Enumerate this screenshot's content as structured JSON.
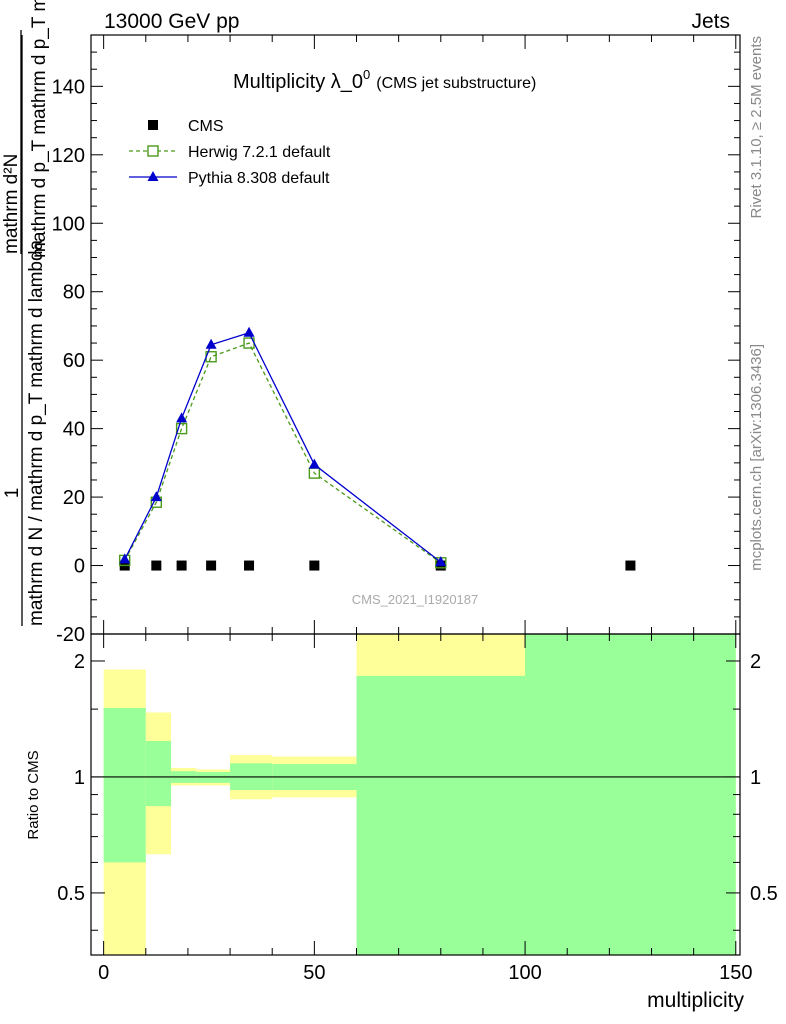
{
  "header": {
    "left": "13000 GeV pp",
    "right": "Jets"
  },
  "side_text": {
    "rivet": "Rivet 3.1.10, ≥ 2.5M events",
    "mcplots": "mcplots.cern.ch [arXiv:1306.3436]"
  },
  "chart_data": [
    {
      "type": "line",
      "title": "Multiplicity λ_0",
      "title_sup": "0",
      "subtitle": "(CMS jet substructure)",
      "watermark": "CMS_2021_I1920187",
      "ylabel_numerator": "1",
      "ylabel_denominator": "mathrm d N / mathrm d p_T mathrm d lambda",
      "ylabel_fraction_numerator": "mathrm d²N",
      "ylabel_fraction_denominator": "mathrm d p_T mathrm d p_T mathrm d lambda",
      "xlim": [
        -3,
        151
      ],
      "ylim": [
        -20,
        155
      ],
      "y_ticks": [
        -20,
        0,
        20,
        40,
        60,
        80,
        100,
        120,
        140
      ],
      "legend": [
        "CMS",
        "Herwig 7.2.1 default",
        "Pythia 8.308 default"
      ],
      "legend_placement": "top-left",
      "series": [
        {
          "name": "CMS",
          "color": "#000000",
          "marker": "square",
          "x": [
            5,
            12.5,
            18.5,
            25.5,
            34.5,
            50,
            80,
            125
          ],
          "y": [
            0,
            0,
            0,
            0,
            0,
            0,
            0,
            0
          ]
        },
        {
          "name": "Herwig 7.2.1 default",
          "color": "#4a9a1a",
          "marker": "open-square",
          "line": "dashed",
          "x": [
            5,
            12.5,
            18.5,
            25.5,
            34.5,
            50,
            80
          ],
          "y": [
            1.5,
            18.5,
            40,
            61,
            65,
            27,
            0.8
          ]
        },
        {
          "name": "Pythia 8.308 default",
          "color": "#0000cc",
          "marker": "triangle",
          "line": "solid",
          "x": [
            5,
            12.5,
            18.5,
            25.5,
            34.5,
            50,
            80
          ],
          "y": [
            1.8,
            20,
            43,
            64.5,
            68,
            29.5,
            1
          ]
        }
      ]
    },
    {
      "type": "area",
      "ylabel": "Ratio to CMS",
      "xlabel": "multiplicity",
      "xlim": [
        -3,
        151
      ],
      "ylim": [
        0.345,
        2.35
      ],
      "x_ticks": [
        0,
        50,
        100,
        150
      ],
      "y_ticks": [
        0.5,
        1,
        2
      ],
      "reference_line": 1,
      "bands": [
        {
          "x0": 0,
          "x1": 10,
          "yellow_lo": 0.3,
          "yellow_hi": 1.9,
          "green_lo": 0.6,
          "green_hi": 1.51
        },
        {
          "x0": 10,
          "x1": 16,
          "yellow_lo": 0.63,
          "yellow_hi": 1.47,
          "green_lo": 0.84,
          "green_hi": 1.24
        },
        {
          "x0": 16,
          "x1": 22,
          "yellow_lo": 0.95,
          "yellow_hi": 1.055,
          "green_lo": 0.965,
          "green_hi": 1.035
        },
        {
          "x0": 22,
          "x1": 30,
          "yellow_lo": 0.95,
          "yellow_hi": 1.045,
          "green_lo": 0.965,
          "green_hi": 1.03
        },
        {
          "x0": 30,
          "x1": 40,
          "yellow_lo": 0.875,
          "yellow_hi": 1.14,
          "green_lo": 0.925,
          "green_hi": 1.085
        },
        {
          "x0": 40,
          "x1": 60,
          "yellow_lo": 0.885,
          "yellow_hi": 1.13,
          "green_lo": 0.925,
          "green_hi": 1.08
        },
        {
          "x0": 60,
          "x1": 100,
          "yellow_lo": 0.3,
          "yellow_hi": 2.5,
          "green_lo": 0.3,
          "green_hi": 1.83
        },
        {
          "x0": 100,
          "x1": 150,
          "yellow_lo": 0.3,
          "yellow_hi": 2.5,
          "green_lo": 0.3,
          "green_hi": 2.5
        }
      ]
    }
  ]
}
